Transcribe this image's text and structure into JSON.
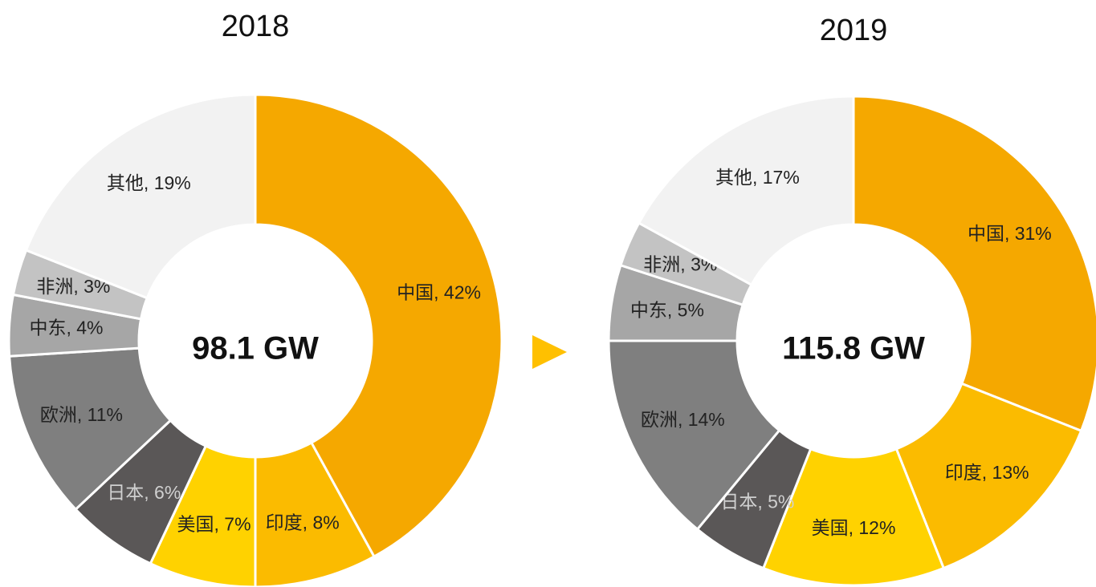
{
  "chart_data": [
    {
      "type": "donut",
      "title": "2018",
      "center_label": "98.1 GW",
      "categories": [
        "中国",
        "印度",
        "美国",
        "日本",
        "欧洲",
        "中东",
        "非洲",
        "其他"
      ],
      "values": [
        42,
        8,
        7,
        6,
        11,
        4,
        3,
        19
      ],
      "value_labels": [
        "中国, 42%",
        "印度, 8%",
        "美国, 7%",
        "日本, 6%",
        "欧洲, 11%",
        "中东, 4%",
        "非洲, 3%",
        "其他, 19%"
      ],
      "colors": [
        "#f5a800",
        "#fbbb00",
        "#ffd200",
        "#5a5757",
        "#7f7f7f",
        "#a6a6a6",
        "#c3c3c3",
        "#f2f2f2"
      ],
      "label_colors": [
        "#222222",
        "#222222",
        "#222222",
        "#d0d0d0",
        "#222222",
        "#222222",
        "#222222",
        "#222222"
      ]
    },
    {
      "type": "donut",
      "title": "2019",
      "center_label": "115.8 GW",
      "categories": [
        "中国",
        "印度",
        "美国",
        "日本",
        "欧洲",
        "中东",
        "非洲",
        "其他"
      ],
      "values": [
        31,
        13,
        12,
        5,
        14,
        5,
        3,
        17
      ],
      "value_labels": [
        "中国, 31%",
        "印度, 13%",
        "美国, 12%",
        "日本, 5%",
        "欧洲, 14%",
        "中东, 5%",
        "非洲, 3%",
        "其他, 17%"
      ],
      "colors": [
        "#f5a800",
        "#fbbb00",
        "#ffd200",
        "#5a5757",
        "#7f7f7f",
        "#a6a6a6",
        "#c3c3c3",
        "#f2f2f2"
      ],
      "label_colors": [
        "#222222",
        "#222222",
        "#222222",
        "#d0d0d0",
        "#222222",
        "#222222",
        "#222222",
        "#222222"
      ]
    }
  ]
}
